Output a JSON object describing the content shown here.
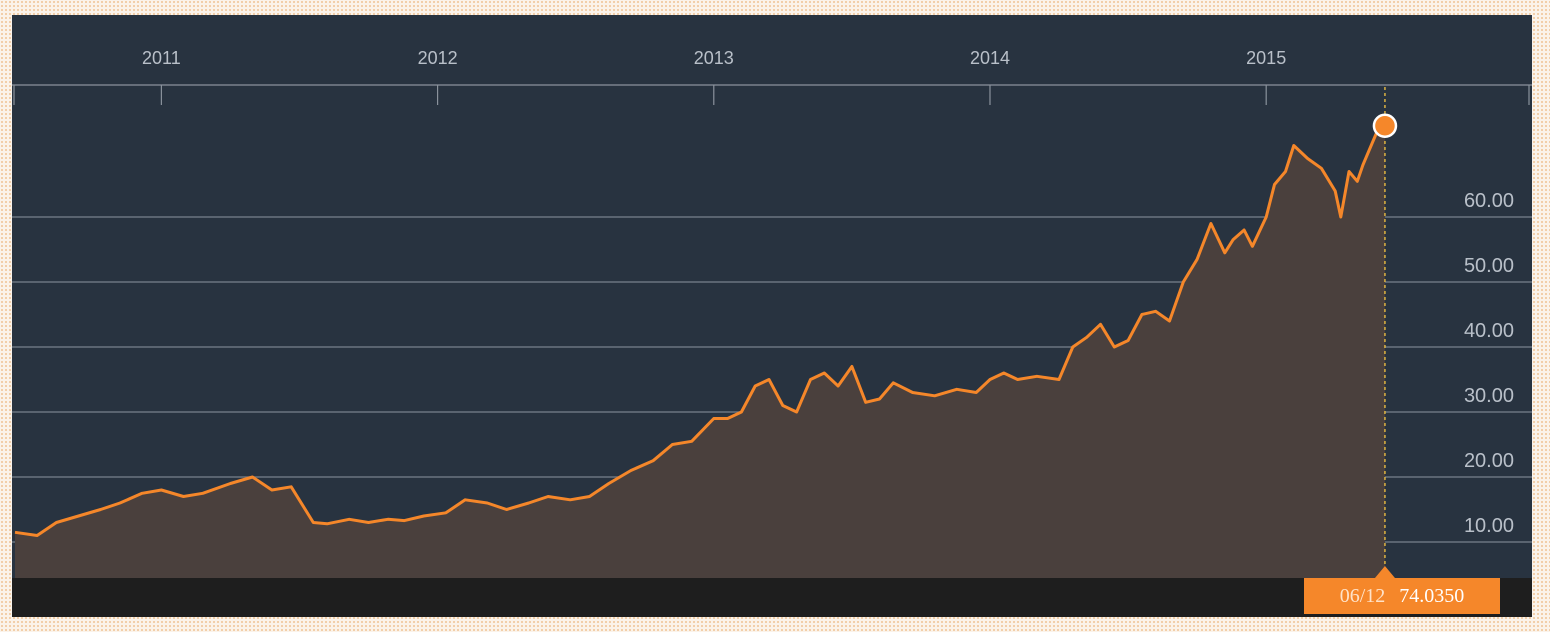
{
  "colors": {
    "background": "#283340",
    "line": "#f5872a",
    "area": "#4a403d",
    "grid": "#6b7480",
    "bottom_band": "#1e1e1e",
    "tag": "#f5872a"
  },
  "tooltip": {
    "date": "06/12",
    "value": "74.0350"
  },
  "chart_data": {
    "type": "area",
    "x_axis": {
      "years": [
        "2011",
        "2012",
        "2013",
        "2014",
        "2015"
      ],
      "range": [
        2010.47,
        2015.92
      ]
    },
    "y_axis": {
      "ticks": [
        "10.00",
        "20.00",
        "30.00",
        "40.00",
        "50.00",
        "60.00"
      ],
      "range": [
        5.5,
        90
      ],
      "position": "right"
    },
    "grid": true,
    "legend": "none",
    "series": [
      {
        "x": [
          2010.47,
          2010.55,
          2010.62,
          2010.7,
          2010.78,
          2010.85,
          2010.93,
          2011.0,
          2011.08,
          2011.15,
          2011.25,
          2011.33,
          2011.4,
          2011.47,
          2011.55,
          2011.6,
          2011.68,
          2011.75,
          2011.82,
          2011.88,
          2011.95,
          2012.03,
          2012.1,
          2012.18,
          2012.25,
          2012.33,
          2012.4,
          2012.48,
          2012.55,
          2012.62,
          2012.7,
          2012.78,
          2012.85,
          2012.92,
          2013.0,
          2013.05,
          2013.1,
          2013.15,
          2013.2,
          2013.25,
          2013.3,
          2013.35,
          2013.4,
          2013.45,
          2013.5,
          2013.55,
          2013.6,
          2013.65,
          2013.72,
          2013.8,
          2013.88,
          2013.95,
          2014.0,
          2014.05,
          2014.1,
          2014.17,
          2014.25,
          2014.3,
          2014.35,
          2014.4,
          2014.45,
          2014.5,
          2014.55,
          2014.6,
          2014.65,
          2014.7,
          2014.75,
          2014.8,
          2014.85,
          2014.88,
          2014.92,
          2014.95,
          2015.0,
          2015.03,
          2015.07,
          2015.1,
          2015.15,
          2015.2,
          2015.25,
          2015.27,
          2015.3,
          2015.33,
          2015.35,
          2015.37,
          2015.4,
          2015.43
        ],
        "y": [
          11.5,
          11.0,
          13.0,
          14.0,
          15.0,
          16.0,
          17.5,
          18.0,
          17.0,
          17.5,
          19.0,
          20.0,
          18.0,
          18.5,
          13.0,
          12.8,
          13.5,
          13.0,
          13.5,
          13.3,
          14.0,
          14.5,
          16.5,
          16.0,
          15.0,
          16.0,
          17.0,
          16.5,
          17.0,
          19.0,
          21.0,
          22.5,
          25.0,
          25.5,
          29.0,
          29.0,
          30.0,
          34.0,
          35.0,
          31.0,
          30.0,
          35.0,
          36.0,
          34.0,
          37.0,
          31.5,
          32.0,
          34.5,
          33.0,
          32.5,
          33.5,
          33.0,
          35.0,
          36.0,
          35.0,
          35.5,
          35.0,
          40.0,
          41.5,
          43.5,
          40.0,
          41.0,
          45.0,
          45.5,
          44.0,
          50.0,
          53.5,
          59.0,
          54.5,
          56.5,
          58.0,
          55.5,
          60.0,
          65.0,
          67.0,
          71.0,
          69.0,
          67.5,
          64.0,
          60.0,
          67.0,
          65.5,
          68.0,
          70.0,
          73.0,
          74.0
        ]
      }
    ],
    "annotation": {
      "x": 2015.43,
      "y": 74.035,
      "label_date": "06/12",
      "label_value": "74.0350"
    }
  }
}
